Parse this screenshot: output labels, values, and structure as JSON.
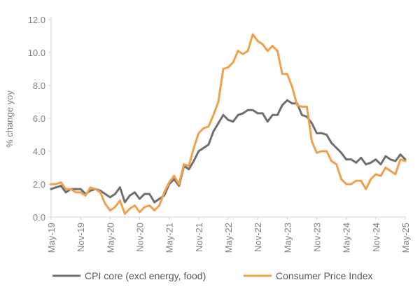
{
  "chart_data": {
    "type": "line",
    "title": "",
    "xlabel": "",
    "ylabel": "% change yoy",
    "ylim": [
      0,
      12
    ],
    "yticks": [
      "0.0",
      "2.0",
      "4.0",
      "6.0",
      "8.0",
      "10.0",
      "12.0"
    ],
    "grid": false,
    "legend_position": "bottom",
    "x": [
      "May-19",
      "Jun-19",
      "Jul-19",
      "Aug-19",
      "Sep-19",
      "Oct-19",
      "Nov-19",
      "Dec-19",
      "Jan-20",
      "Feb-20",
      "Mar-20",
      "Apr-20",
      "May-20",
      "Jun-20",
      "Jul-20",
      "Aug-20",
      "Sep-20",
      "Oct-20",
      "Nov-20",
      "Dec-20",
      "Jan-21",
      "Feb-21",
      "Mar-21",
      "Apr-21",
      "May-21",
      "Jun-21",
      "Jul-21",
      "Aug-21",
      "Sep-21",
      "Oct-21",
      "Nov-21",
      "Dec-21",
      "Jan-22",
      "Feb-22",
      "Mar-22",
      "Apr-22",
      "May-22",
      "Jun-22",
      "Jul-22",
      "Aug-22",
      "Sep-22",
      "Oct-22",
      "Nov-22",
      "Dec-22",
      "Jan-23",
      "Feb-23",
      "Mar-23",
      "Apr-23",
      "May-23",
      "Jun-23",
      "Jul-23",
      "Aug-23",
      "Sep-23",
      "Oct-23",
      "Nov-23",
      "Dec-23",
      "Jan-24",
      "Feb-24",
      "Mar-24",
      "Apr-24",
      "May-24",
      "Jun-24",
      "Jul-24",
      "Aug-24",
      "Sep-24",
      "Oct-24",
      "Nov-24",
      "Dec-24",
      "Jan-25",
      "Feb-25",
      "Mar-25",
      "Apr-25",
      "May-25"
    ],
    "xtick_labels": [
      "May-19",
      "Nov-19",
      "May-20",
      "Nov-20",
      "May-21",
      "Nov-21",
      "May-22",
      "Nov-22",
      "May-23",
      "Nov-23",
      "May-24",
      "Nov-24",
      "May-25"
    ],
    "series": [
      {
        "name": "CPI core (excl energy, food)",
        "color": "#6f6f6f",
        "values": [
          1.7,
          1.8,
          1.9,
          1.5,
          1.7,
          1.7,
          1.7,
          1.4,
          1.6,
          1.7,
          1.6,
          1.4,
          1.2,
          1.4,
          1.8,
          0.9,
          1.3,
          1.5,
          1.1,
          1.4,
          1.4,
          0.9,
          1.1,
          1.3,
          2.0,
          2.3,
          1.9,
          3.1,
          2.9,
          3.4,
          4.0,
          4.2,
          4.4,
          5.2,
          5.7,
          6.2,
          5.9,
          5.8,
          6.2,
          6.3,
          6.5,
          6.5,
          6.3,
          6.3,
          5.8,
          6.2,
          6.2,
          6.8,
          7.1,
          6.9,
          6.9,
          6.2,
          6.1,
          5.7,
          5.1,
          5.1,
          5.0,
          4.5,
          4.2,
          3.9,
          3.5,
          3.5,
          3.3,
          3.6,
          3.2,
          3.3,
          3.5,
          3.2,
          3.7,
          3.5,
          3.4,
          3.8,
          3.5
        ]
      },
      {
        "name": "Consumer Price Index",
        "color": "#f0a04b",
        "values": [
          2.0,
          2.0,
          2.1,
          1.7,
          1.7,
          1.5,
          1.5,
          1.3,
          1.8,
          1.7,
          1.5,
          0.8,
          0.4,
          0.6,
          1.0,
          0.2,
          0.5,
          0.7,
          0.3,
          0.6,
          0.7,
          0.4,
          0.7,
          1.5,
          2.1,
          2.5,
          2.0,
          3.2,
          3.1,
          4.2,
          5.1,
          5.4,
          5.5,
          6.2,
          7.0,
          9.0,
          9.1,
          9.4,
          10.1,
          9.9,
          10.1,
          11.1,
          10.7,
          10.5,
          10.1,
          10.4,
          10.1,
          8.7,
          8.7,
          7.9,
          6.8,
          6.7,
          6.7,
          4.6,
          3.9,
          4.0,
          4.0,
          3.4,
          3.2,
          2.3,
          2.0,
          2.0,
          2.2,
          2.2,
          1.7,
          2.3,
          2.6,
          2.5,
          3.0,
          2.8,
          2.6,
          3.5,
          3.4
        ]
      }
    ]
  }
}
